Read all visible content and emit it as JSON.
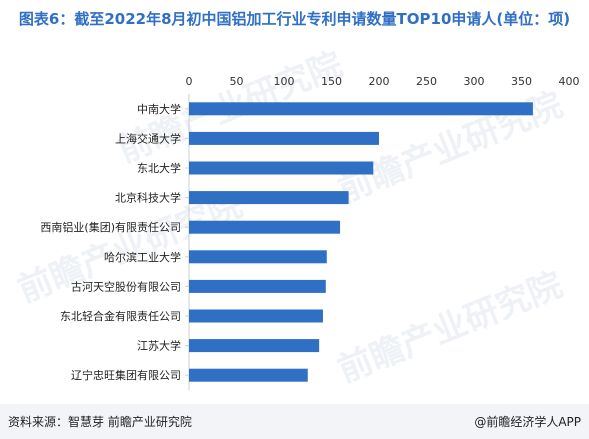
{
  "header": {
    "title": "图表6：截至2022年8月初中国铝加工行业专利申请数量TOP10申请人(单位：项)"
  },
  "chart_data": {
    "type": "bar",
    "orientation": "horizontal",
    "title": "图表6：截至2022年8月初中国铝加工行业专利申请数量TOP10申请人(单位：项)",
    "categories": [
      "中南大学",
      "上海交通大学",
      "东北大学",
      "北京科技大学",
      "西南铝业(集团)有限责任公司",
      "哈尔滨工业大学",
      "古河天空股份有限公司",
      "东北轻合金有限责任公司",
      "江苏大学",
      "辽宁忠旺集团有限公司"
    ],
    "values": [
      362,
      200,
      194,
      168,
      159,
      145,
      144,
      141,
      137,
      125
    ],
    "xticks": [
      "0",
      "50",
      "100",
      "150",
      "200",
      "250",
      "300",
      "350",
      "400"
    ],
    "xlim": [
      0,
      400
    ],
    "axis_position": "top",
    "grid": false,
    "bar_color": "#2f6fc4"
  },
  "footer": {
    "source": "资料来源：智慧芽 前瞻产业研究院",
    "brand": "@前瞻经济学人APP"
  },
  "watermark": "前瞻产业研究院"
}
